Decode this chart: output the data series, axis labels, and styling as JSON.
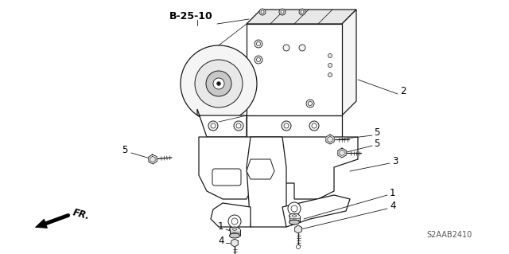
{
  "bg_color": "#ffffff",
  "line_color": "#1a1a1a",
  "gray_fill": "#e8e8e8",
  "light_fill": "#f5f5f5",
  "dark_fill": "#c8c8c8",
  "part_label_color": "#000000",
  "part_number_color": "#555555",
  "title_label": "B-25-10",
  "part_number_text": "S2AAB2410",
  "fr_label": "FR."
}
